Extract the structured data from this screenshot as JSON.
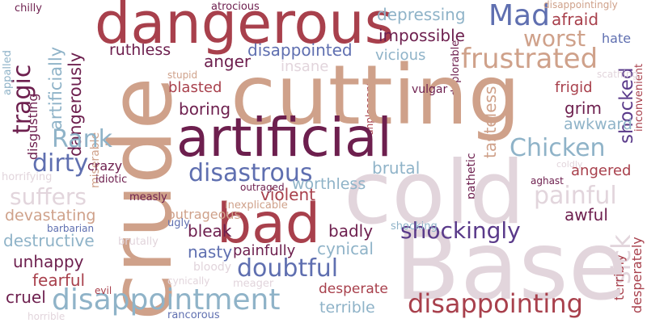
{
  "palette": {
    "dark_plum": "#6d1f4e",
    "crimson": "#a8404c",
    "tan": "#cfa18a",
    "blush": "#e2d5dc",
    "steel_blue": "#8fb3c8",
    "indigo": "#5f6fb0",
    "purple": "#5a3a8a",
    "background": "#ffffff"
  },
  "words": [
    {
      "text": "Base",
      "color": "#e2d5dc"
    },
    {
      "text": "cold",
      "color": "#e2d5dc"
    },
    {
      "text": "cutting",
      "color": "#cfa18a"
    },
    {
      "text": "crude",
      "color": "#cfa18a"
    },
    {
      "text": "dangerous",
      "color": "#a8404c"
    },
    {
      "text": "artificial",
      "color": "#6d1f4e"
    },
    {
      "text": "bad",
      "color": "#a8404c"
    },
    {
      "text": "disappointment",
      "color": "#8fb3c8"
    },
    {
      "text": "frustrated",
      "color": "#cfa18a"
    },
    {
      "text": "disappointing",
      "color": "#a8404c"
    },
    {
      "text": "Mad",
      "color": "#5f6fb0"
    },
    {
      "text": "disastrous",
      "color": "#5f6fb0"
    },
    {
      "text": "Chicken",
      "color": "#8fb3c8"
    },
    {
      "text": "shockingly",
      "color": "#5a3a8a"
    },
    {
      "text": "painful",
      "color": "#e2d5dc"
    },
    {
      "text": "doubtful",
      "color": "#5f6fb0"
    },
    {
      "text": "worst",
      "color": "#cfa18a"
    },
    {
      "text": "suffers",
      "color": "#e2d5dc"
    },
    {
      "text": "tragic",
      "color": "#6d1f4e"
    },
    {
      "text": "Rank",
      "color": "#8fb3c8"
    },
    {
      "text": "dirty",
      "color": "#5f6fb0"
    },
    {
      "text": "impossible",
      "color": "#6d1f4e"
    },
    {
      "text": "depressing",
      "color": "#8fb3c8"
    },
    {
      "text": "disappointed",
      "color": "#5f6fb0"
    },
    {
      "text": "sick",
      "color": "#e2d5dc"
    },
    {
      "text": "tasteless",
      "color": "#cfa18a"
    },
    {
      "text": "shocked",
      "color": "#5a3a8a"
    },
    {
      "text": "dangerously",
      "color": "#6d1f4e"
    },
    {
      "text": "artificially",
      "color": "#8fb3c8"
    },
    {
      "text": "afraid",
      "color": "#a8404c"
    },
    {
      "text": "violent",
      "color": "#a8404c"
    },
    {
      "text": "unhappy",
      "color": "#6d1f4e"
    },
    {
      "text": "destructive",
      "color": "#8fb3c8"
    },
    {
      "text": "devastating",
      "color": "#cfa18a"
    },
    {
      "text": "cynical",
      "color": "#8fb3c8"
    },
    {
      "text": "worthless",
      "color": "#8fb3c8"
    },
    {
      "text": "ruthless",
      "color": "#6d1f4e"
    },
    {
      "text": "anger",
      "color": "#6d1f4e"
    },
    {
      "text": "brutal",
      "color": "#8fb3c8"
    },
    {
      "text": "terrible",
      "color": "#8fb3c8"
    },
    {
      "text": "desperate",
      "color": "#a8404c"
    },
    {
      "text": "fearful",
      "color": "#a8404c"
    },
    {
      "text": "cruel",
      "color": "#6d1f4e"
    },
    {
      "text": "nasty",
      "color": "#5f6fb0"
    },
    {
      "text": "painfully",
      "color": "#6d1f4e"
    },
    {
      "text": "badly",
      "color": "#6d1f4e"
    },
    {
      "text": "bleak",
      "color": "#6d1f4e"
    },
    {
      "text": "awful",
      "color": "#6d1f4e"
    },
    {
      "text": "boring",
      "color": "#6d1f4e"
    },
    {
      "text": "blasted",
      "color": "#a8404c"
    },
    {
      "text": "grim",
      "color": "#6d1f4e"
    },
    {
      "text": "awkward",
      "color": "#8fb3c8"
    },
    {
      "text": "angered",
      "color": "#a8404c"
    },
    {
      "text": "frigid",
      "color": "#a8404c"
    },
    {
      "text": "hate",
      "color": "#5f6fb0"
    },
    {
      "text": "vicious",
      "color": "#8fb3c8"
    },
    {
      "text": "insane",
      "color": "#e2d5dc"
    },
    {
      "text": "outrageous",
      "color": "#cfa18a"
    },
    {
      "text": "crazy",
      "color": "#6d1f4e"
    },
    {
      "text": "disgusting",
      "color": "#6d1f4e"
    },
    {
      "text": "miserable",
      "color": "#cfa18a"
    },
    {
      "text": "vulgar",
      "color": "#6d1f4e"
    },
    {
      "text": "deplorable",
      "color": "#6d1f4e"
    },
    {
      "text": "unpleasant",
      "color": "#a8404c"
    },
    {
      "text": "pathetic",
      "color": "#6d1f4e"
    },
    {
      "text": "desperately",
      "color": "#a8404c"
    },
    {
      "text": "terribly",
      "color": "#a8404c"
    },
    {
      "text": "inconvenient",
      "color": "#a8404c"
    },
    {
      "text": "scathing",
      "color": "#e2d5dc"
    },
    {
      "text": "disappointingly",
      "color": "#cfa18a"
    },
    {
      "text": "atrocious",
      "color": "#6d1f4e"
    },
    {
      "text": "chilly",
      "color": "#6d1f4e"
    },
    {
      "text": "appalled",
      "color": "#8fb3c8"
    },
    {
      "text": "horrifying",
      "color": "#e2d5dc"
    },
    {
      "text": "idiotic",
      "color": "#6d1f4e"
    },
    {
      "text": "stupid",
      "color": "#cfa18a"
    },
    {
      "text": "measly",
      "color": "#6d1f4e"
    },
    {
      "text": "barbarian",
      "color": "#5f6fb0"
    },
    {
      "text": "brutally",
      "color": "#e2d5dc"
    },
    {
      "text": "ugly",
      "color": "#5f6fb0"
    },
    {
      "text": "inexplicable",
      "color": "#cfa18a"
    },
    {
      "text": "outraged",
      "color": "#6d1f4e"
    },
    {
      "text": "coldly",
      "color": "#e2d5dc"
    },
    {
      "text": "aghast",
      "color": "#6d1f4e"
    },
    {
      "text": "shocking",
      "color": "#8fb3c8"
    },
    {
      "text": "bloody",
      "color": "#e2d5dc"
    },
    {
      "text": "cynically",
      "color": "#e2d5dc"
    },
    {
      "text": "meager",
      "color": "#e2d5dc"
    },
    {
      "text": "evil",
      "color": "#a8404c"
    },
    {
      "text": "horrible",
      "color": "#e2d5dc"
    },
    {
      "text": "rancorous",
      "color": "#5f6fb0"
    }
  ]
}
